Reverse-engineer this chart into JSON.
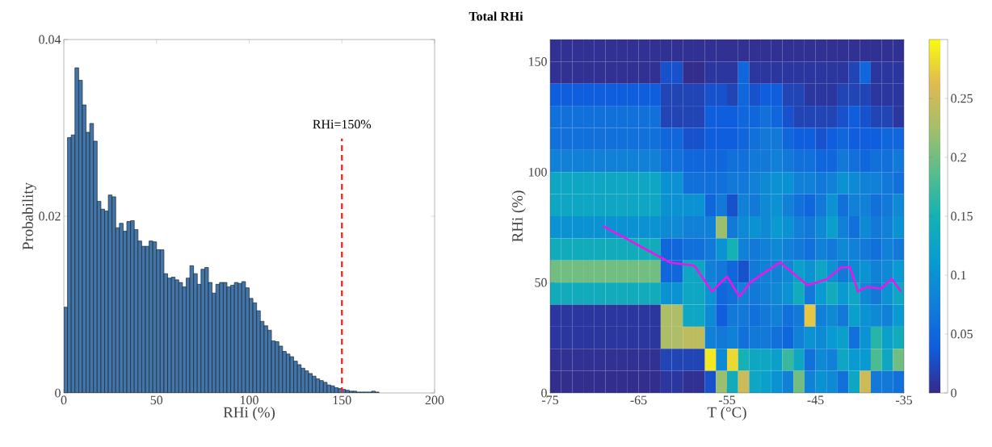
{
  "chart_data": [
    {
      "type": "histogram",
      "xlabel": "RHi (%)",
      "ylabel": "Probability",
      "color": "#4375a8",
      "bins": [
        0,
        2,
        4,
        6,
        8,
        10,
        12,
        14,
        16,
        18,
        20,
        22,
        24,
        26,
        28,
        30,
        32,
        34,
        36,
        38,
        40,
        42,
        44,
        46,
        48,
        50,
        52,
        54,
        56,
        58,
        60,
        62,
        64,
        66,
        68,
        70,
        72,
        74,
        76,
        78,
        80,
        82,
        84,
        86,
        88,
        90,
        92,
        94,
        96,
        98,
        100,
        102,
        104,
        106,
        108,
        110,
        112,
        114,
        116,
        118,
        120,
        122,
        124,
        126,
        128,
        130,
        132,
        134,
        136,
        138,
        140,
        142,
        144,
        146,
        148,
        150,
        152,
        154,
        156,
        158,
        160,
        162,
        164,
        166,
        168,
        170
      ],
      "values": [
        0.0097,
        0.0289,
        0.0292,
        0.0368,
        0.0354,
        0.0326,
        0.0295,
        0.0305,
        0.0285,
        0.0217,
        0.0208,
        0.0206,
        0.0224,
        0.0222,
        0.0187,
        0.0192,
        0.0183,
        0.0194,
        0.0195,
        0.0185,
        0.0172,
        0.0166,
        0.0166,
        0.0172,
        0.0171,
        0.0162,
        0.0162,
        0.0135,
        0.013,
        0.0131,
        0.0128,
        0.0125,
        0.012,
        0.013,
        0.0144,
        0.0135,
        0.0123,
        0.014,
        0.0142,
        0.0125,
        0.0113,
        0.0123,
        0.0125,
        0.0125,
        0.012,
        0.0122,
        0.0125,
        0.0124,
        0.0126,
        0.0119,
        0.0107,
        0.0102,
        0.0093,
        0.0081,
        0.0076,
        0.0071,
        0.0059,
        0.0058,
        0.0053,
        0.0047,
        0.0044,
        0.0041,
        0.0036,
        0.0032,
        0.0028,
        0.0025,
        0.0022,
        0.0019,
        0.0016,
        0.0014,
        0.0012,
        0.0009,
        0.0008,
        0.0006,
        0.0005,
        0.0004,
        0.0003,
        0.0002,
        0.0002,
        0.0001,
        0.0001,
        0.0001,
        0.0001,
        0.0002,
        0.0001
      ],
      "xlim": [
        0,
        200
      ],
      "ylim": [
        0,
        0.04
      ],
      "xticks": [
        0,
        50,
        100,
        150,
        200
      ],
      "yticks": [
        0,
        0.02,
        0.04
      ],
      "ref_lines": [
        {
          "axis": "x",
          "value": 150,
          "label": "RHi=150%",
          "color": "#e8302a",
          "line_style": "dashed"
        }
      ]
    },
    {
      "type": "heatmap",
      "title": "Total RHi",
      "xlabel": "T (°C)",
      "ylabel": "RHi (%)",
      "x": [
        -74.375,
        -73.125,
        -71.875,
        -70.625,
        -69.375,
        -68.125,
        -66.875,
        -65.625,
        -64.375,
        -63.125,
        -61.875,
        -60.625,
        -59.375,
        -58.125,
        -56.875,
        -55.625,
        -54.375,
        -53.125,
        -51.875,
        -50.625,
        -49.375,
        -48.125,
        -46.875,
        -45.625,
        -44.375,
        -43.125,
        -41.875,
        -40.625,
        -39.375,
        -38.125,
        -36.875,
        -35.625
      ],
      "cells": [
        [
          0.005,
          0.005,
          0.005,
          0.005,
          0.005,
          0.005,
          0.005,
          0.005,
          0.005,
          0.005,
          0.005,
          0.005,
          0.005,
          0.005,
          0.005,
          0.005,
          0.005,
          0.005,
          0.005,
          0.005,
          0.005,
          0.005,
          0.005,
          0.005,
          0.005,
          0.005,
          0.005,
          0.005,
          0.005,
          0.005,
          0.005,
          0.005
        ],
        [
          0.005,
          0.005,
          0.005,
          0.005,
          0.005,
          0.005,
          0.005,
          0.005,
          0.005,
          0.005,
          0.03,
          0.03,
          0.002,
          0.002,
          0.01,
          0.01,
          0.01,
          0.05,
          0.01,
          0.01,
          0.01,
          0.01,
          0.01,
          0.01,
          0.01,
          0.01,
          0.01,
          0.02,
          0.05,
          0.01,
          0.01,
          0.01
        ],
        [
          0.04,
          0.04,
          0.04,
          0.04,
          0.04,
          0.04,
          0.04,
          0.04,
          0.04,
          0.04,
          0.02,
          0.02,
          0.02,
          0.02,
          0.03,
          0.03,
          0.02,
          0.05,
          0.03,
          0.04,
          0.04,
          0.02,
          0.02,
          0.01,
          0.01,
          0.01,
          0.02,
          0.02,
          0.02,
          0.01,
          0.01,
          0.01
        ],
        [
          0.06,
          0.06,
          0.06,
          0.06,
          0.06,
          0.06,
          0.06,
          0.06,
          0.06,
          0.06,
          0.02,
          0.02,
          0.02,
          0.02,
          0.04,
          0.04,
          0.04,
          0.05,
          0.05,
          0.06,
          0.05,
          0.03,
          0.02,
          0.02,
          0.02,
          0.02,
          0.03,
          0.04,
          0.03,
          0.02,
          0.02,
          0.01
        ],
        [
          0.06,
          0.06,
          0.06,
          0.06,
          0.06,
          0.06,
          0.06,
          0.06,
          0.06,
          0.06,
          0.05,
          0.05,
          0.03,
          0.03,
          0.04,
          0.04,
          0.04,
          0.05,
          0.06,
          0.07,
          0.07,
          0.05,
          0.04,
          0.04,
          0.03,
          0.04,
          0.05,
          0.04,
          0.04,
          0.04,
          0.05,
          0.05
        ],
        [
          0.08,
          0.08,
          0.08,
          0.08,
          0.08,
          0.08,
          0.08,
          0.08,
          0.08,
          0.08,
          0.06,
          0.06,
          0.05,
          0.05,
          0.05,
          0.05,
          0.06,
          0.06,
          0.07,
          0.07,
          0.08,
          0.07,
          0.06,
          0.06,
          0.05,
          0.05,
          0.07,
          0.06,
          0.05,
          0.06,
          0.06,
          0.07
        ],
        [
          0.13,
          0.13,
          0.13,
          0.13,
          0.13,
          0.13,
          0.13,
          0.13,
          0.13,
          0.13,
          0.1,
          0.1,
          0.06,
          0.06,
          0.06,
          0.06,
          0.07,
          0.07,
          0.08,
          0.09,
          0.1,
          0.1,
          0.08,
          0.08,
          0.07,
          0.08,
          0.1,
          0.09,
          0.08,
          0.08,
          0.07,
          0.06
        ],
        [
          0.13,
          0.13,
          0.13,
          0.13,
          0.13,
          0.13,
          0.13,
          0.13,
          0.13,
          0.13,
          0.1,
          0.1,
          0.1,
          0.1,
          0.05,
          0.07,
          0.03,
          0.08,
          0.07,
          0.09,
          0.1,
          0.08,
          0.06,
          0.05,
          0.07,
          0.1,
          0.06,
          0.08,
          0.08,
          0.06,
          0.07,
          0.09
        ],
        [
          0.1,
          0.1,
          0.1,
          0.1,
          0.1,
          0.1,
          0.1,
          0.1,
          0.1,
          0.1,
          0.09,
          0.09,
          0.08,
          0.08,
          0.08,
          0.22,
          0.07,
          0.09,
          0.1,
          0.09,
          0.11,
          0.1,
          0.08,
          0.07,
          0.09,
          0.12,
          0.08,
          0.06,
          0.09,
          0.07,
          0.08,
          0.1
        ],
        [
          0.14,
          0.14,
          0.14,
          0.14,
          0.14,
          0.14,
          0.14,
          0.14,
          0.14,
          0.14,
          0.05,
          0.05,
          0.06,
          0.06,
          0.07,
          0.1,
          0.15,
          0.08,
          0.07,
          0.08,
          0.09,
          0.08,
          0.07,
          0.06,
          0.08,
          0.07,
          0.09,
          0.08,
          0.07,
          0.06,
          0.08,
          0.07
        ],
        [
          0.2,
          0.2,
          0.2,
          0.2,
          0.2,
          0.2,
          0.2,
          0.2,
          0.2,
          0.2,
          0.05,
          0.05,
          0.13,
          0.13,
          0.08,
          0.07,
          0.05,
          0.03,
          0.07,
          0.08,
          0.08,
          0.09,
          0.12,
          0.1,
          0.13,
          0.1,
          0.07,
          0.09,
          0.1,
          0.08,
          0.09,
          0.11
        ],
        [
          0.14,
          0.14,
          0.14,
          0.14,
          0.14,
          0.14,
          0.14,
          0.14,
          0.14,
          0.14,
          0.1,
          0.1,
          0.13,
          0.13,
          0.1,
          0.05,
          0.06,
          0.08,
          0.07,
          0.08,
          0.09,
          0.1,
          0.14,
          0.07,
          0.11,
          0.14,
          0.11,
          0.13,
          0.09,
          0.07,
          0.1,
          0.13
        ],
        [
          0.01,
          0.01,
          0.01,
          0.01,
          0.01,
          0.01,
          0.01,
          0.01,
          0.01,
          0.01,
          0.23,
          0.23,
          0.13,
          0.13,
          0.09,
          0.04,
          0.07,
          0.07,
          0.06,
          0.07,
          0.08,
          0.06,
          0.07,
          0.27,
          0.08,
          0.09,
          0.07,
          0.12,
          0.1,
          0.09,
          0.08,
          0.11
        ],
        [
          0.01,
          0.01,
          0.01,
          0.01,
          0.01,
          0.01,
          0.01,
          0.01,
          0.01,
          0.01,
          0.23,
          0.23,
          0.24,
          0.24,
          0.08,
          0.07,
          0.08,
          0.06,
          0.07,
          0.07,
          0.06,
          0.05,
          0.08,
          0.1,
          0.09,
          0.11,
          0.12,
          0.06,
          0.1,
          0.16,
          0.12,
          0.14
        ],
        [
          0.005,
          0.005,
          0.005,
          0.005,
          0.005,
          0.005,
          0.005,
          0.005,
          0.005,
          0.005,
          0.02,
          0.02,
          0.02,
          0.02,
          0.29,
          0.09,
          0.28,
          0.15,
          0.13,
          0.13,
          0.12,
          0.17,
          0.13,
          0.06,
          0.09,
          0.08,
          0.13,
          0.11,
          0.11,
          0.18,
          0.13,
          0.2
        ],
        [
          0.003,
          0.003,
          0.003,
          0.003,
          0.003,
          0.003,
          0.003,
          0.003,
          0.003,
          0.003,
          0.01,
          0.01,
          0.005,
          0.005,
          0.03,
          0.22,
          0.14,
          0.25,
          0.13,
          0.12,
          0.1,
          0.08,
          0.2,
          0.08,
          0.1,
          0.09,
          0.06,
          0.13,
          0.25,
          0.07,
          0.07,
          0.06
        ]
      ],
      "clim": [
        0,
        0.3
      ],
      "cticks": [
        0,
        0.05,
        0.1,
        0.15,
        0.2,
        0.25
      ],
      "xlim": [
        -75,
        -35
      ],
      "ylim": [
        0,
        160
      ],
      "xticks": [
        -75,
        -65,
        -55,
        -45,
        -35
      ],
      "yticks": [
        0,
        50,
        100,
        150
      ],
      "series": [
        {
          "type": "line",
          "color": "#e619e6",
          "x": [
            -68.9,
            -61.4,
            -58.7,
            -56.7,
            -55.0,
            -53.6,
            -52.3,
            -49.0,
            -45.9,
            -43.7,
            -42.1,
            -41.1,
            -40.2,
            -39.2,
            -37.6,
            -36.4,
            -35.4
          ],
          "values": [
            75.3,
            59,
            57.6,
            46,
            52.7,
            43.6,
            50.3,
            59.2,
            48.8,
            51.5,
            56.8,
            57,
            46,
            48.1,
            47.2,
            51.7,
            46.3
          ]
        }
      ]
    }
  ]
}
